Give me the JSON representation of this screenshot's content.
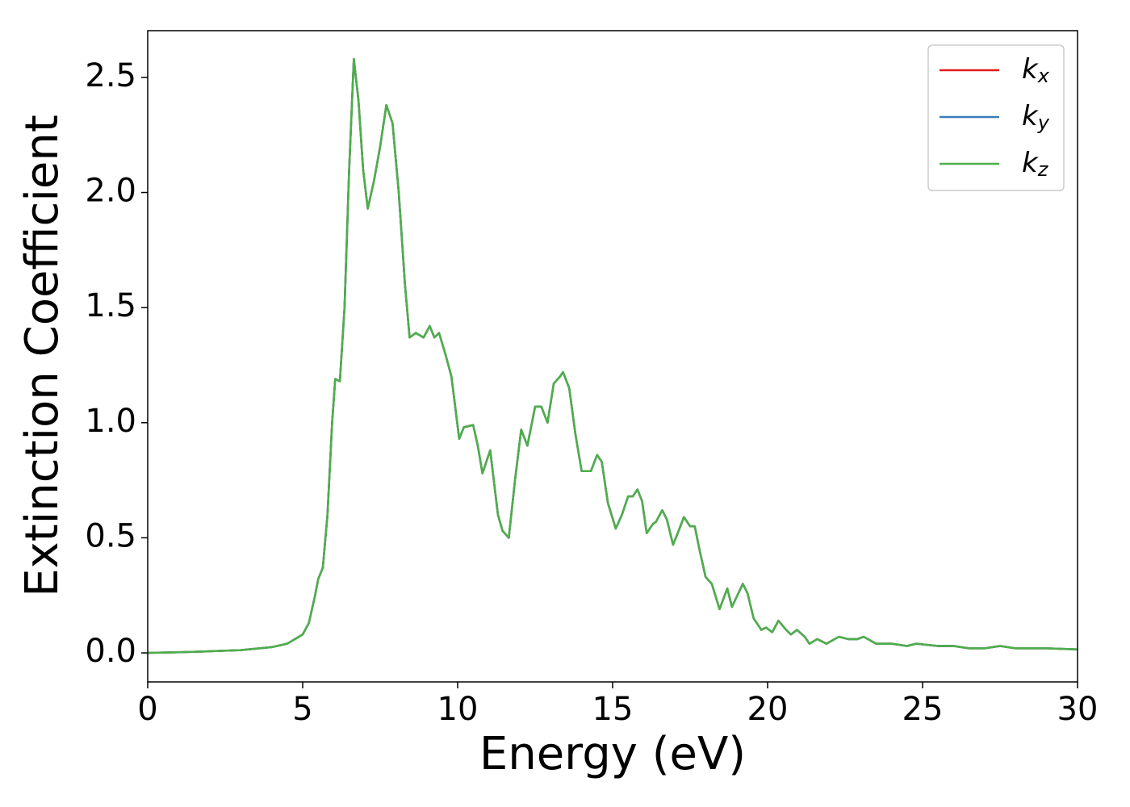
{
  "chart_data": {
    "type": "line",
    "xlabel": "Energy (eV)",
    "ylabel": "Extinction Coefficient",
    "x": [
      0,
      1,
      2,
      3,
      4,
      4.5,
      5,
      5.2,
      5.4,
      5.5,
      5.65,
      5.8,
      5.95,
      6.05,
      6.2,
      6.35,
      6.5,
      6.65,
      6.8,
      6.95,
      7.1,
      7.3,
      7.5,
      7.7,
      7.9,
      8.1,
      8.3,
      8.45,
      8.65,
      8.9,
      9.1,
      9.25,
      9.4,
      9.6,
      9.8,
      10.05,
      10.2,
      10.5,
      10.65,
      10.8,
      11.05,
      11.3,
      11.45,
      11.65,
      11.85,
      12.05,
      12.25,
      12.5,
      12.7,
      12.9,
      13.1,
      13.3,
      13.4,
      13.6,
      13.8,
      14.0,
      14.3,
      14.5,
      14.65,
      14.85,
      15.1,
      15.3,
      15.5,
      15.65,
      15.8,
      15.95,
      16.1,
      16.3,
      16.4,
      16.6,
      16.75,
      16.95,
      17.1,
      17.3,
      17.5,
      17.65,
      17.8,
      18.0,
      18.2,
      18.45,
      18.7,
      18.85,
      19.2,
      19.35,
      19.55,
      19.8,
      19.95,
      20.15,
      20.35,
      20.6,
      20.75,
      20.95,
      21.2,
      21.35,
      21.6,
      21.9,
      22.3,
      22.6,
      22.9,
      23.1,
      23.5,
      24.0,
      24.5,
      24.8,
      25.5,
      26,
      26.5,
      27,
      27.5,
      28,
      29,
      30
    ],
    "series": [
      {
        "name": "kx",
        "color": "#e41a1c",
        "values": [
          0,
          0.003,
          0.007,
          0.012,
          0.025,
          0.04,
          0.08,
          0.13,
          0.25,
          0.32,
          0.37,
          0.6,
          1.0,
          1.19,
          1.18,
          1.5,
          2.1,
          2.58,
          2.4,
          2.1,
          1.93,
          2.05,
          2.2,
          2.38,
          2.3,
          2.0,
          1.6,
          1.37,
          1.39,
          1.37,
          1.42,
          1.37,
          1.39,
          1.3,
          1.2,
          0.93,
          0.98,
          0.99,
          0.9,
          0.78,
          0.88,
          0.6,
          0.53,
          0.5,
          0.75,
          0.97,
          0.9,
          1.07,
          1.07,
          1.0,
          1.17,
          1.2,
          1.22,
          1.15,
          0.95,
          0.79,
          0.79,
          0.86,
          0.83,
          0.65,
          0.54,
          0.6,
          0.68,
          0.68,
          0.71,
          0.66,
          0.52,
          0.56,
          0.57,
          0.62,
          0.58,
          0.47,
          0.52,
          0.59,
          0.55,
          0.55,
          0.45,
          0.33,
          0.3,
          0.19,
          0.28,
          0.2,
          0.3,
          0.26,
          0.15,
          0.1,
          0.11,
          0.09,
          0.14,
          0.1,
          0.08,
          0.1,
          0.07,
          0.04,
          0.06,
          0.04,
          0.07,
          0.06,
          0.06,
          0.07,
          0.04,
          0.04,
          0.03,
          0.04,
          0.03,
          0.03,
          0.02,
          0.02,
          0.03,
          0.02,
          0.02,
          0.015
        ]
      },
      {
        "name": "ky",
        "color": "#377eb8",
        "values": [
          0,
          0.003,
          0.007,
          0.012,
          0.025,
          0.04,
          0.08,
          0.13,
          0.25,
          0.32,
          0.37,
          0.6,
          1.0,
          1.19,
          1.18,
          1.5,
          2.1,
          2.58,
          2.4,
          2.1,
          1.93,
          2.05,
          2.2,
          2.38,
          2.3,
          2.0,
          1.6,
          1.37,
          1.39,
          1.37,
          1.42,
          1.37,
          1.39,
          1.3,
          1.2,
          0.93,
          0.98,
          0.99,
          0.9,
          0.78,
          0.88,
          0.6,
          0.53,
          0.5,
          0.75,
          0.97,
          0.9,
          1.07,
          1.07,
          1.0,
          1.17,
          1.2,
          1.22,
          1.15,
          0.95,
          0.79,
          0.79,
          0.86,
          0.83,
          0.65,
          0.54,
          0.6,
          0.68,
          0.68,
          0.71,
          0.66,
          0.52,
          0.56,
          0.57,
          0.62,
          0.58,
          0.47,
          0.52,
          0.59,
          0.55,
          0.55,
          0.45,
          0.33,
          0.3,
          0.19,
          0.28,
          0.2,
          0.3,
          0.26,
          0.15,
          0.1,
          0.11,
          0.09,
          0.14,
          0.1,
          0.08,
          0.1,
          0.07,
          0.04,
          0.06,
          0.04,
          0.07,
          0.06,
          0.06,
          0.07,
          0.04,
          0.04,
          0.03,
          0.04,
          0.03,
          0.03,
          0.02,
          0.02,
          0.03,
          0.02,
          0.02,
          0.015
        ]
      },
      {
        "name": "kz",
        "color": "#4daf4a",
        "values": [
          0,
          0.003,
          0.007,
          0.012,
          0.025,
          0.04,
          0.08,
          0.13,
          0.25,
          0.32,
          0.37,
          0.6,
          1.0,
          1.19,
          1.18,
          1.5,
          2.1,
          2.58,
          2.4,
          2.1,
          1.93,
          2.05,
          2.2,
          2.38,
          2.3,
          2.0,
          1.6,
          1.37,
          1.39,
          1.37,
          1.42,
          1.37,
          1.39,
          1.3,
          1.2,
          0.93,
          0.98,
          0.99,
          0.9,
          0.78,
          0.88,
          0.6,
          0.53,
          0.5,
          0.75,
          0.97,
          0.9,
          1.07,
          1.07,
          1.0,
          1.17,
          1.2,
          1.22,
          1.15,
          0.95,
          0.79,
          0.79,
          0.86,
          0.83,
          0.65,
          0.54,
          0.6,
          0.68,
          0.68,
          0.71,
          0.66,
          0.52,
          0.56,
          0.57,
          0.62,
          0.58,
          0.47,
          0.52,
          0.59,
          0.55,
          0.55,
          0.45,
          0.33,
          0.3,
          0.19,
          0.28,
          0.2,
          0.3,
          0.26,
          0.15,
          0.1,
          0.11,
          0.09,
          0.14,
          0.1,
          0.08,
          0.1,
          0.07,
          0.04,
          0.06,
          0.04,
          0.07,
          0.06,
          0.06,
          0.07,
          0.04,
          0.04,
          0.03,
          0.04,
          0.03,
          0.03,
          0.02,
          0.02,
          0.03,
          0.02,
          0.02,
          0.015
        ]
      }
    ],
    "xlim": [
      0,
      30
    ],
    "xticks": [
      0,
      5,
      10,
      15,
      20,
      25,
      30
    ],
    "ylim": [
      -0.126,
      2.703
    ],
    "yticks": [
      {
        "value": 0,
        "label": "0.0"
      },
      0.5,
      {
        "value": 1,
        "label": "1.0"
      },
      1.5,
      {
        "value": 2,
        "label": "2.0"
      },
      2.5
    ],
    "grid": false,
    "legend": "upper right"
  }
}
